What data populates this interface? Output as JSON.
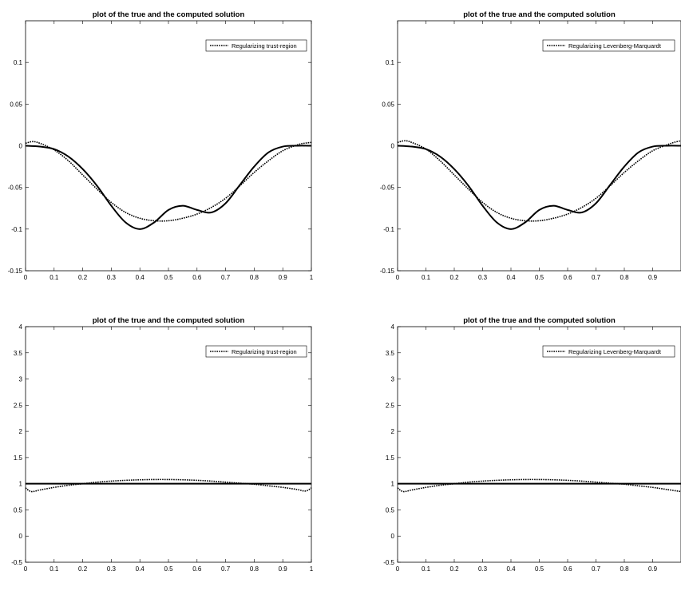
{
  "chart_data": [
    {
      "type": "line",
      "title": "plot of the true and the computed solution",
      "xlim": [
        0,
        1
      ],
      "ylim": [
        -0.15,
        0.15
      ],
      "x_ticks": [
        "0",
        "0.1",
        "0.2",
        "0.3",
        "0.4",
        "0.5",
        "0.6",
        "0.7",
        "0.8",
        "0.9",
        "1"
      ],
      "y_ticks": [
        "-0.15",
        "-0.1",
        "-0.05",
        "0",
        "0.05",
        "0.1"
      ],
      "legend": "top-right",
      "series": [
        {
          "style": "solid",
          "x": [
            0,
            0.05,
            0.1,
            0.15,
            0.2,
            0.25,
            0.3,
            0.35,
            0.4,
            0.45,
            0.5,
            0.55,
            0.6,
            0.65,
            0.7,
            0.75,
            0.8,
            0.85,
            0.9,
            0.95,
            1
          ],
          "y": [
            0,
            -0.001,
            -0.004,
            -0.013,
            -0.028,
            -0.048,
            -0.072,
            -0.092,
            -0.1,
            -0.092,
            -0.077,
            -0.072,
            -0.077,
            -0.08,
            -0.069,
            -0.047,
            -0.025,
            -0.008,
            -0.001,
            0,
            0
          ]
        },
        {
          "name": "Regularizing trust-region",
          "style": "dotted",
          "x": [
            0,
            0.025,
            0.05,
            0.1,
            0.15,
            0.2,
            0.25,
            0.3,
            0.35,
            0.4,
            0.45,
            0.5,
            0.55,
            0.6,
            0.65,
            0.7,
            0.75,
            0.8,
            0.85,
            0.9,
            0.95,
            0.975,
            1
          ],
          "y": [
            0.003,
            0.005,
            0.003,
            -0.005,
            -0.018,
            -0.035,
            -0.052,
            -0.068,
            -0.08,
            -0.087,
            -0.09,
            -0.09,
            -0.087,
            -0.082,
            -0.074,
            -0.063,
            -0.048,
            -0.032,
            -0.018,
            -0.006,
            0.001,
            0.003,
            0.004
          ]
        }
      ]
    },
    {
      "type": "line",
      "title": "plot of the true and the computed solution",
      "xlim": [
        0,
        1
      ],
      "ylim": [
        -0.15,
        0.15
      ],
      "x_ticks": [
        "0",
        "0.1",
        "0.2",
        "0.3",
        "0.4",
        "0.5",
        "0.6",
        "0.7",
        "0.8",
        "0.9"
      ],
      "y_ticks": [
        "-0.15",
        "-0.1",
        "-0.05",
        "0",
        "0.05",
        "0.1"
      ],
      "legend": "top-right",
      "series": [
        {
          "style": "solid",
          "x": [
            0,
            0.05,
            0.1,
            0.15,
            0.2,
            0.25,
            0.3,
            0.35,
            0.4,
            0.45,
            0.5,
            0.55,
            0.6,
            0.65,
            0.7,
            0.75,
            0.8,
            0.85,
            0.9,
            0.95,
            1
          ],
          "y": [
            0,
            -0.001,
            -0.004,
            -0.013,
            -0.028,
            -0.048,
            -0.072,
            -0.092,
            -0.1,
            -0.092,
            -0.077,
            -0.072,
            -0.077,
            -0.08,
            -0.069,
            -0.047,
            -0.025,
            -0.008,
            -0.001,
            0,
            0
          ]
        },
        {
          "name": "Regularizing Levenberg-Marquardt",
          "style": "dotted",
          "x": [
            0,
            0.025,
            0.05,
            0.1,
            0.15,
            0.2,
            0.25,
            0.3,
            0.35,
            0.4,
            0.45,
            0.5,
            0.55,
            0.6,
            0.65,
            0.7,
            0.75,
            0.8,
            0.85,
            0.9,
            0.95,
            0.975,
            1
          ],
          "y": [
            0.004,
            0.006,
            0.004,
            -0.004,
            -0.018,
            -0.035,
            -0.052,
            -0.068,
            -0.08,
            -0.087,
            -0.09,
            -0.09,
            -0.087,
            -0.082,
            -0.074,
            -0.063,
            -0.048,
            -0.032,
            -0.018,
            -0.006,
            0.001,
            0.004,
            0.006
          ]
        }
      ]
    },
    {
      "type": "line",
      "title": "plot of the true and the computed solution",
      "xlim": [
        0,
        1
      ],
      "ylim": [
        -0.5,
        4
      ],
      "x_ticks": [
        "0",
        "0.1",
        "0.2",
        "0.3",
        "0.4",
        "0.5",
        "0.6",
        "0.7",
        "0.8",
        "0.9",
        "1"
      ],
      "y_ticks": [
        "-0.5",
        "0",
        "0.5",
        "1",
        "1.5",
        "2",
        "2.5",
        "3",
        "3.5",
        "4"
      ],
      "legend": "top-right",
      "series": [
        {
          "style": "solid",
          "x": [
            0,
            1
          ],
          "y": [
            1,
            1
          ]
        },
        {
          "name": "Regularizing trust-region",
          "style": "dotted",
          "x": [
            0,
            0.02,
            0.05,
            0.1,
            0.15,
            0.2,
            0.25,
            0.3,
            0.35,
            0.4,
            0.45,
            0.5,
            0.55,
            0.6,
            0.65,
            0.7,
            0.75,
            0.8,
            0.85,
            0.9,
            0.95,
            0.98,
            1
          ],
          "y": [
            0.92,
            0.85,
            0.88,
            0.93,
            0.97,
            1.0,
            1.03,
            1.05,
            1.065,
            1.075,
            1.08,
            1.08,
            1.075,
            1.065,
            1.05,
            1.03,
            1.01,
            0.99,
            0.96,
            0.93,
            0.89,
            0.86,
            0.92
          ]
        }
      ]
    },
    {
      "type": "line",
      "title": "plot of the true and the computed solution",
      "xlim": [
        0,
        1
      ],
      "ylim": [
        -0.5,
        4
      ],
      "x_ticks": [
        "0",
        "0.1",
        "0.2",
        "0.3",
        "0.4",
        "0.5",
        "0.6",
        "0.7",
        "0.8",
        "0.9"
      ],
      "y_ticks": [
        "-0.5",
        "0",
        "0.5",
        "1",
        "1.5",
        "2",
        "2.5",
        "3",
        "3.5",
        "4"
      ],
      "legend": "top-right",
      "series": [
        {
          "style": "solid",
          "x": [
            0,
            1
          ],
          "y": [
            1,
            1
          ]
        },
        {
          "name": "Regularizing Levenberg-Marquardt",
          "style": "dotted",
          "x": [
            0,
            0.02,
            0.05,
            0.1,
            0.15,
            0.2,
            0.25,
            0.3,
            0.35,
            0.4,
            0.45,
            0.5,
            0.55,
            0.6,
            0.65,
            0.7,
            0.75,
            0.8,
            0.85,
            0.9,
            0.95,
            1
          ],
          "y": [
            0.92,
            0.85,
            0.88,
            0.93,
            0.97,
            1.0,
            1.03,
            1.05,
            1.065,
            1.075,
            1.08,
            1.08,
            1.075,
            1.065,
            1.05,
            1.03,
            1.01,
            0.99,
            0.96,
            0.93,
            0.89,
            0.85
          ]
        }
      ]
    }
  ]
}
